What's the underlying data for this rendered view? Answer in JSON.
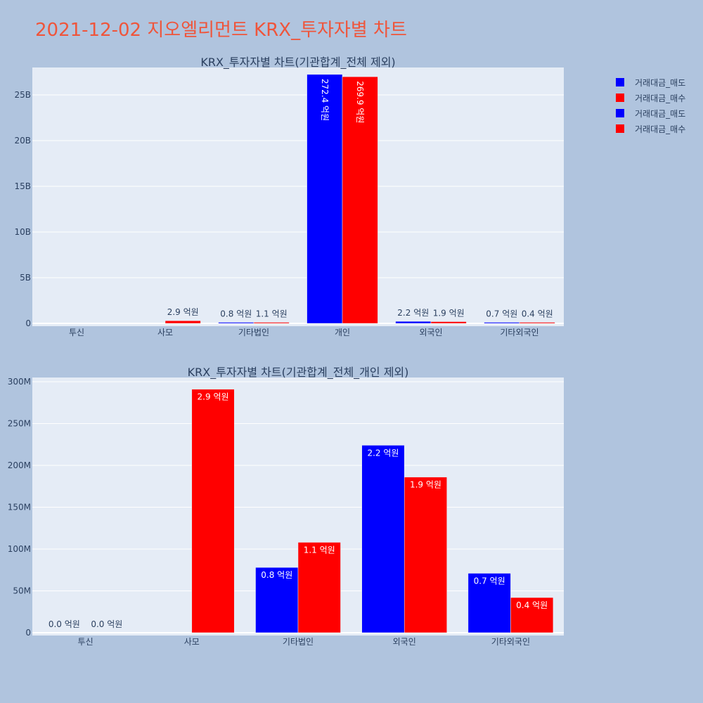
{
  "page": {
    "title": "2021-12-02 지오엘리먼트 KRX_투자자별 차트"
  },
  "colors": {
    "sell": "#0000ff",
    "buy": "#ff0000",
    "plot_bg": "#e5ecf6",
    "page_bg": "#b0c4de",
    "title": "#ef553b"
  },
  "legend": {
    "items": [
      {
        "label": "거래대금_매도",
        "color": "#0000ff"
      },
      {
        "label": "거래대금_매수",
        "color": "#ff0000"
      },
      {
        "label": "거래대금_매도",
        "color": "#0000ff"
      },
      {
        "label": "거래대금_매수",
        "color": "#ff0000"
      }
    ]
  },
  "chart_data": [
    {
      "type": "bar",
      "title": "KRX_투자자별 차트(기관합계_전체 제외)",
      "categories": [
        "투신",
        "사모",
        "기타법인",
        "개인",
        "외국인",
        "기타외국인"
      ],
      "ylim": [
        0,
        28000000000
      ],
      "yticks": [
        0,
        5000000000,
        10000000000,
        15000000000,
        20000000000,
        25000000000
      ],
      "ytick_labels": [
        "0",
        "5B",
        "10B",
        "15B",
        "20B",
        "25B"
      ],
      "series": [
        {
          "name": "거래대금_매도",
          "values": [
            0,
            0,
            80000000,
            27240000000,
            220000000,
            70000000
          ],
          "labels": [
            "",
            "",
            "0.8 억원",
            "272.4 억원",
            "2.2 억원",
            "0.7 억원"
          ]
        },
        {
          "name": "거래대금_매수",
          "values": [
            0,
            290000000,
            110000000,
            26990000000,
            190000000,
            40000000
          ],
          "labels": [
            "",
            "2.9 억원",
            "1.1 억원",
            "269.9 억원",
            "1.9 억원",
            "0.4 억원"
          ]
        }
      ]
    },
    {
      "type": "bar",
      "title": "KRX_투자자별 차트(기관합계_전체_개인 제외)",
      "categories": [
        "투신",
        "사모",
        "기타법인",
        "외국인",
        "기타외국인"
      ],
      "ylim": [
        0,
        305000000
      ],
      "yticks": [
        0,
        50000000,
        100000000,
        150000000,
        200000000,
        250000000,
        300000000
      ],
      "ytick_labels": [
        "0",
        "50M",
        "100M",
        "150M",
        "200M",
        "250M",
        "300M"
      ],
      "series": [
        {
          "name": "거래대금_매도",
          "values": [
            0,
            0,
            78000000,
            224000000,
            71000000
          ],
          "labels": [
            "0.0 억원",
            "",
            "0.8 억원",
            "2.2 억원",
            "0.7 억원"
          ]
        },
        {
          "name": "거래대금_매수",
          "values": [
            0,
            291000000,
            108000000,
            186000000,
            42000000
          ],
          "labels": [
            "0.0 억원",
            "2.9 억원",
            "1.1 억원",
            "1.9 억원",
            "0.4 억원"
          ]
        }
      ]
    }
  ]
}
